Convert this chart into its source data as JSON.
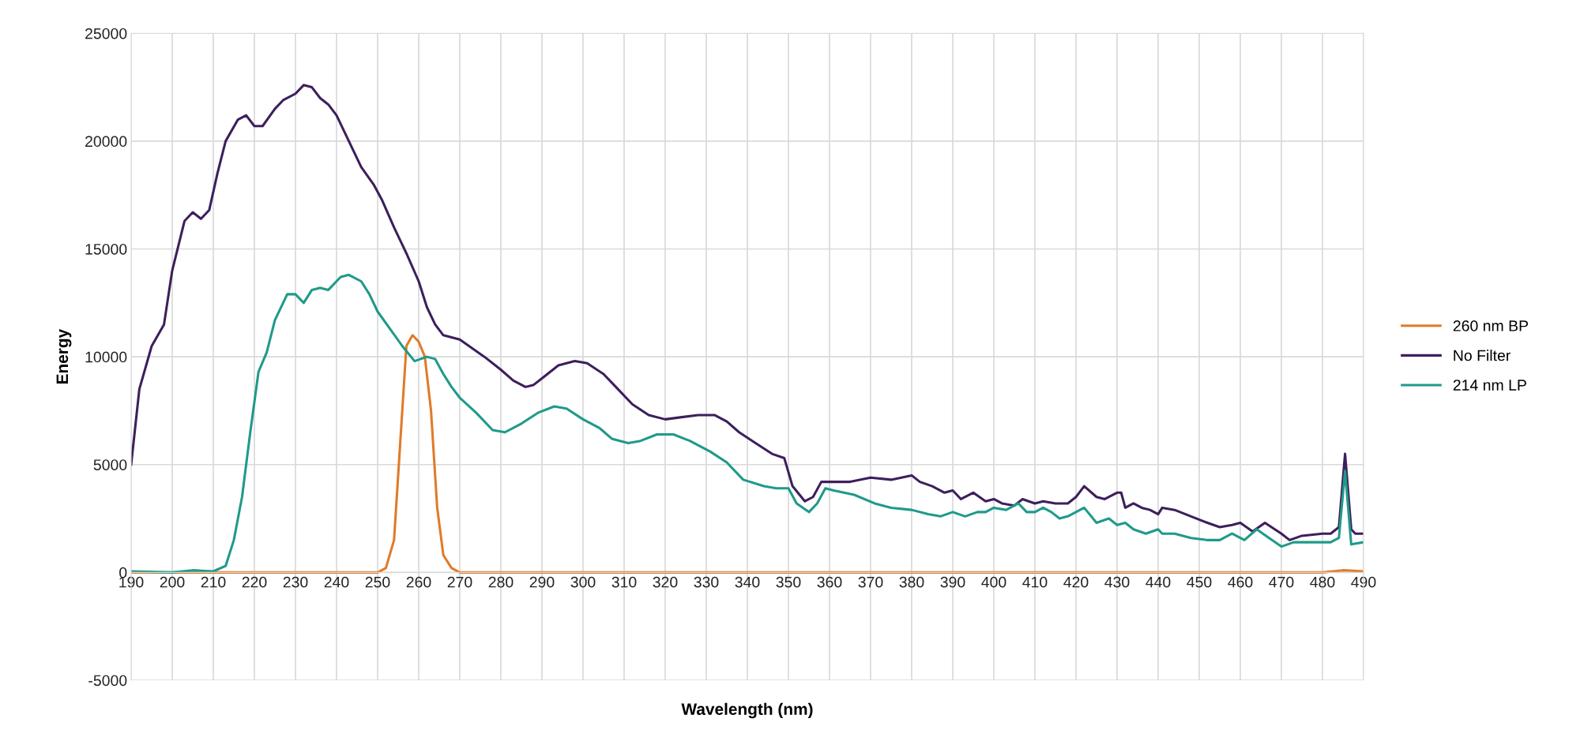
{
  "chart_data": {
    "type": "line",
    "xlabel": "Wavelength (nm)",
    "ylabel": "Energy",
    "xlim": [
      190,
      490
    ],
    "xticks": [
      190,
      200,
      210,
      220,
      230,
      240,
      250,
      260,
      270,
      280,
      290,
      300,
      310,
      320,
      330,
      340,
      350,
      360,
      370,
      380,
      390,
      400,
      410,
      420,
      430,
      440,
      450,
      460,
      470,
      480,
      490
    ],
    "ylim": [
      -5000,
      25000
    ],
    "yticks": [
      -5000,
      0,
      5000,
      10000,
      15000,
      20000,
      25000
    ],
    "grid": true,
    "legend": "right",
    "line_style": "solid",
    "marker": "none",
    "series": [
      {
        "name": "260 nm BP",
        "color": "#e07b28",
        "x": [
          190,
          200,
          210,
          220,
          230,
          240,
          250,
          252,
          254,
          255.5,
          257,
          258.5,
          260,
          261.5,
          263,
          264.5,
          266,
          268,
          270,
          300,
          350,
          400,
          450,
          480,
          485,
          490
        ],
        "values": [
          0,
          0,
          0,
          0,
          0,
          0,
          0,
          200,
          1500,
          6000,
          10500,
          11000,
          10700,
          10000,
          7500,
          3000,
          800,
          200,
          0,
          0,
          0,
          0,
          0,
          0,
          100,
          50
        ]
      },
      {
        "name": "No Filter",
        "color": "#3d1f5c",
        "x": [
          190,
          192,
          195,
          198,
          200,
          203,
          205,
          207,
          209,
          211,
          213,
          216,
          218,
          220,
          222,
          225,
          227,
          230,
          232,
          234,
          236,
          238,
          240,
          243,
          246,
          249,
          251,
          254,
          257,
          260,
          262,
          264,
          266,
          270,
          273,
          276,
          280,
          283,
          286,
          288,
          290,
          294,
          298,
          301,
          305,
          308,
          312,
          316,
          320,
          324,
          328,
          332,
          335,
          338,
          342,
          346,
          349,
          351,
          354,
          356,
          358,
          360,
          365,
          370,
          375,
          380,
          382,
          385,
          388,
          390,
          392,
          395,
          398,
          400,
          402,
          405,
          407,
          410,
          412,
          415,
          418,
          420,
          422,
          425,
          427,
          430,
          431,
          432,
          434,
          436,
          438,
          440,
          441,
          444,
          448,
          452,
          455,
          458,
          460,
          463,
          466,
          470,
          472,
          475,
          480,
          482,
          484,
          485.5,
          487,
          488,
          490
        ],
        "values": [
          5000,
          8500,
          10500,
          11500,
          14000,
          16300,
          16700,
          16400,
          16800,
          18500,
          20000,
          21000,
          21200,
          20700,
          20700,
          21500,
          21900,
          22200,
          22600,
          22500,
          22000,
          21700,
          21200,
          20000,
          18800,
          18000,
          17300,
          16000,
          14800,
          13500,
          12300,
          11500,
          11000,
          10800,
          10400,
          10000,
          9400,
          8900,
          8600,
          8700,
          9000,
          9600,
          9800,
          9700,
          9200,
          8600,
          7800,
          7300,
          7100,
          7200,
          7300,
          7300,
          7000,
          6500,
          6000,
          5500,
          5300,
          4000,
          3300,
          3500,
          4200,
          4200,
          4200,
          4400,
          4300,
          4500,
          4200,
          4000,
          3700,
          3800,
          3400,
          3700,
          3300,
          3400,
          3200,
          3100,
          3400,
          3200,
          3300,
          3200,
          3200,
          3500,
          4000,
          3500,
          3400,
          3700,
          3700,
          3000,
          3200,
          3000,
          2900,
          2700,
          3000,
          2900,
          2600,
          2300,
          2100,
          2200,
          2300,
          1900,
          2300,
          1800,
          1500,
          1700,
          1800,
          1800,
          2100,
          5500,
          2000,
          1800,
          1800
        ]
      },
      {
        "name": "214 nm LP",
        "color": "#1f9a8a",
        "x": [
          190,
          200,
          205,
          210,
          213,
          215,
          217,
          219,
          221,
          223,
          225,
          228,
          230,
          232,
          234,
          236,
          238,
          241,
          243,
          246,
          248,
          250,
          253,
          256,
          259,
          262,
          264,
          266,
          268,
          270,
          274,
          278,
          281,
          285,
          289,
          293,
          296,
          300,
          304,
          307,
          311,
          314,
          318,
          322,
          326,
          331,
          335,
          339,
          344,
          347,
          350,
          352,
          355,
          357,
          359,
          361,
          366,
          371,
          375,
          380,
          384,
          387,
          390,
          393,
          396,
          398,
          400,
          403,
          406,
          408,
          410,
          412,
          414,
          416,
          418,
          422,
          425,
          428,
          430,
          432,
          434,
          437,
          440,
          441,
          444,
          448,
          452,
          455,
          458,
          461,
          464,
          467,
          470,
          473,
          478,
          482,
          484,
          485.5,
          487,
          490
        ],
        "values": [
          50,
          0,
          100,
          50,
          300,
          1500,
          3500,
          6500,
          9300,
          10200,
          11700,
          12900,
          12900,
          12500,
          13100,
          13200,
          13100,
          13700,
          13800,
          13500,
          12900,
          12100,
          11300,
          10500,
          9800,
          10000,
          9900,
          9200,
          8600,
          8100,
          7400,
          6600,
          6500,
          6900,
          7400,
          7700,
          7600,
          7100,
          6700,
          6200,
          6000,
          6100,
          6400,
          6400,
          6100,
          5600,
          5100,
          4300,
          4000,
          3900,
          3900,
          3200,
          2800,
          3200,
          3900,
          3800,
          3600,
          3200,
          3000,
          2900,
          2700,
          2600,
          2800,
          2600,
          2800,
          2800,
          3000,
          2900,
          3200,
          2800,
          2800,
          3000,
          2800,
          2500,
          2600,
          3000,
          2300,
          2500,
          2200,
          2300,
          2000,
          1800,
          2000,
          1800,
          1800,
          1600,
          1500,
          1500,
          1800,
          1500,
          2000,
          1600,
          1200,
          1400,
          1400,
          1400,
          1600,
          4700,
          1300,
          1400
        ]
      }
    ]
  }
}
